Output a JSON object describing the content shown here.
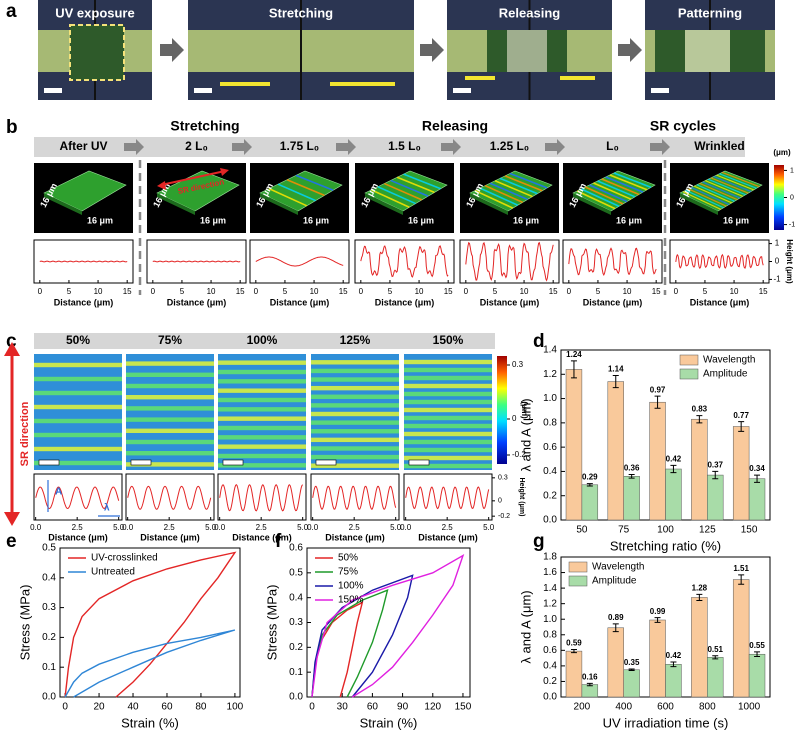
{
  "panel_labels": [
    "a",
    "b",
    "c",
    "d",
    "e",
    "f",
    "g"
  ],
  "panel_a": {
    "photos": [
      "UV exposure",
      "Stretching",
      "Releasing",
      "Patterning"
    ]
  },
  "panel_b": {
    "phases": [
      "Stretching",
      "Releasing",
      "SR cycles"
    ],
    "stages": [
      "After UV",
      "2 L₀",
      "1.75 L₀",
      "1.5 L₀",
      "1.25 L₀",
      "L₀",
      "Wrinkled"
    ],
    "size_label": "16 μm",
    "direction": "SR direction",
    "colorbar_unit": "(μm)",
    "colorbar_ticks": [
      1,
      0,
      -1
    ],
    "colorbar_range": [
      -1.2,
      1.2
    ],
    "profile_xticks": [
      0,
      5,
      10,
      15
    ],
    "profile_xlim": [
      -1,
      16
    ],
    "profile_yticks": [
      1,
      0,
      -1
    ],
    "profile_ylim": [
      -1.2,
      1.2
    ],
    "xlabel": "Distance (μm)",
    "ylabel": "Height (μm)"
  },
  "panel_c": {
    "ratios": [
      "50%",
      "75%",
      "100%",
      "125%",
      "150%"
    ],
    "direction": "SR direction",
    "colorbar_unit": "(μm)",
    "colorbar_ticks": [
      0.3,
      0,
      -0.2
    ],
    "colorbar_range": [
      -0.25,
      0.35
    ],
    "profile_xticks": [
      {
        "value": 0,
        "label": "0.0"
      },
      2.5,
      {
        "value": 5,
        "label": "5.0"
      }
    ],
    "profile_xlim": [
      -0.1,
      5.2
    ],
    "profile_yticks": [
      0.3,
      0,
      -0.2
    ],
    "profile_ylim": [
      -0.25,
      0.35
    ],
    "xlabel": "Distance (μm)",
    "ylabel": "Height (μm)",
    "amplitude_symbol": "A",
    "wavelength_symbol": "λ"
  },
  "chart_data": [
    {
      "type": "bar",
      "categories": [
        "50",
        "75",
        "100",
        "125",
        "150"
      ],
      "xlabel": "Stretching ratio (%)",
      "ylabel": "λ and A (μm)",
      "ylim": [
        0,
        1.4
      ],
      "yticks": [
        {
          "value": 0,
          "label": "0.0"
        },
        0.2,
        0.4,
        0.6,
        0.8,
        {
          "value": 1,
          "label": "1.0"
        },
        1.2,
        1.4
      ],
      "legend": "upper right",
      "series": [
        {
          "name": "Wavelength",
          "color": "#f9c99b",
          "values": [
            1.24,
            1.14,
            0.97,
            0.83,
            0.77
          ],
          "errors": [
            0.07,
            0.05,
            0.05,
            0.03,
            0.04
          ]
        },
        {
          "name": "Amplitude",
          "color": "#a8dca8",
          "values": [
            0.29,
            0.36,
            0.42,
            0.37,
            0.34
          ],
          "errors": [
            0.01,
            0.015,
            0.03,
            0.03,
            0.03
          ]
        }
      ]
    },
    {
      "type": "line",
      "xlabel": "Strain (%)",
      "ylabel": "Stress (MPa)",
      "xlim": [
        -3,
        103
      ],
      "xticks": [
        0,
        20,
        40,
        60,
        80,
        100
      ],
      "ylim": [
        0,
        0.5
      ],
      "yticks": [
        {
          "value": 0,
          "label": "0.0"
        },
        0.1,
        0.2,
        0.3,
        0.4,
        0.5
      ],
      "legend": "upper left",
      "series": [
        {
          "name": "UV-crosslinked",
          "color": "#e32626",
          "x": [
            0,
            2,
            5,
            10,
            20,
            40,
            60,
            80,
            100,
            90,
            80,
            70,
            60,
            50,
            40,
            30
          ],
          "values": [
            0,
            0.1,
            0.2,
            0.27,
            0.33,
            0.39,
            0.43,
            0.46,
            0.485,
            0.4,
            0.33,
            0.25,
            0.18,
            0.11,
            0.05,
            0
          ]
        },
        {
          "name": "Untreated",
          "color": "#2f86d6",
          "x": [
            0,
            5,
            10,
            20,
            40,
            60,
            80,
            100,
            80,
            60,
            40,
            20,
            5
          ],
          "values": [
            0,
            0.05,
            0.08,
            0.11,
            0.15,
            0.18,
            0.2,
            0.225,
            0.19,
            0.15,
            0.1,
            0.05,
            0
          ]
        }
      ]
    },
    {
      "type": "line",
      "xlabel": "Strain (%)",
      "ylabel": "Stress (MPa)",
      "xlim": [
        -5,
        157
      ],
      "xticks": [
        0,
        30,
        60,
        90,
        120,
        150
      ],
      "ylim": [
        0,
        0.6
      ],
      "yticks": [
        {
          "value": 0,
          "label": "0.0"
        },
        0.1,
        0.2,
        0.3,
        0.4,
        0.5,
        0.6
      ],
      "legend": "upper left",
      "series": [
        {
          "name": "50%",
          "color": "#e32626",
          "x": [
            0,
            3,
            8,
            20,
            35,
            50,
            45,
            40,
            35,
            28
          ],
          "values": [
            0,
            0.12,
            0.22,
            0.3,
            0.35,
            0.38,
            0.3,
            0.2,
            0.1,
            0
          ]
        },
        {
          "name": "75%",
          "color": "#1e9a2a",
          "x": [
            0,
            3,
            10,
            25,
            50,
            75,
            70,
            60,
            45,
            35
          ],
          "values": [
            0,
            0.13,
            0.25,
            0.33,
            0.39,
            0.43,
            0.35,
            0.22,
            0.08,
            0
          ]
        },
        {
          "name": "100%",
          "color": "#1a1aa8",
          "x": [
            0,
            3,
            10,
            30,
            60,
            100,
            95,
            80,
            60,
            40
          ],
          "values": [
            0,
            0.14,
            0.27,
            0.36,
            0.43,
            0.49,
            0.4,
            0.25,
            0.1,
            0
          ]
        },
        {
          "name": "150%",
          "color": "#e020e0",
          "x": [
            0,
            5,
            15,
            40,
            80,
            120,
            150,
            140,
            120,
            100,
            80,
            60,
            40
          ],
          "values": [
            0,
            0.16,
            0.3,
            0.39,
            0.45,
            0.5,
            0.57,
            0.45,
            0.33,
            0.22,
            0.12,
            0.05,
            0
          ]
        }
      ]
    },
    {
      "type": "bar",
      "categories": [
        "200",
        "400",
        "600",
        "800",
        "1000"
      ],
      "xlabel": "UV irradiation time (s)",
      "ylabel": "λ and A (μm)",
      "ylim": [
        0,
        1.8
      ],
      "yticks": [
        {
          "value": 0,
          "label": "0.0"
        },
        0.2,
        0.4,
        0.6,
        0.8,
        {
          "value": 1,
          "label": "1.0"
        },
        1.2,
        1.4,
        1.6,
        1.8
      ],
      "legend": "upper left",
      "series": [
        {
          "name": "Wavelength",
          "color": "#f9c99b",
          "values": [
            0.59,
            0.89,
            0.99,
            1.28,
            1.51
          ],
          "errors": [
            0.02,
            0.05,
            0.03,
            0.04,
            0.06
          ]
        },
        {
          "name": "Amplitude",
          "color": "#a8dca8",
          "values": [
            0.16,
            0.35,
            0.42,
            0.51,
            0.55
          ],
          "errors": [
            0.015,
            0.01,
            0.03,
            0.02,
            0.03
          ]
        }
      ]
    }
  ]
}
